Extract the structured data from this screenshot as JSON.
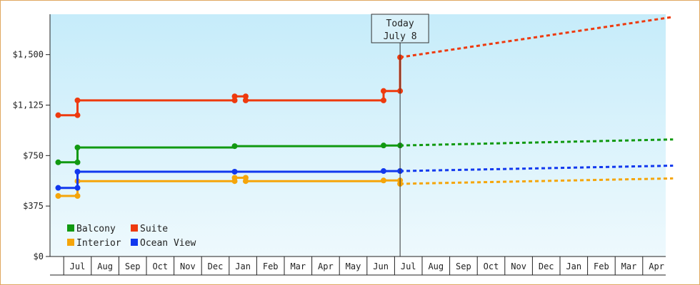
{
  "chart_data": {
    "type": "line",
    "title": "",
    "xlabel": "",
    "ylabel": "",
    "ylim": [
      0,
      1800
    ],
    "y_ticks": [
      {
        "value": 0,
        "label": "$0"
      },
      {
        "value": 375,
        "label": "$375"
      },
      {
        "value": 750,
        "label": "$750"
      },
      {
        "value": 1125,
        "label": "$1,125"
      },
      {
        "value": 1500,
        "label": "$1,500"
      }
    ],
    "x_range": [
      -0.7,
      21.6
    ],
    "x_ticks": [
      {
        "pos": 0,
        "label": "Jul"
      },
      {
        "pos": 1,
        "label": "Aug"
      },
      {
        "pos": 2,
        "label": "Sep"
      },
      {
        "pos": 3,
        "label": "Oct"
      },
      {
        "pos": 4,
        "label": "Nov"
      },
      {
        "pos": 5,
        "label": "Dec"
      },
      {
        "pos": 6,
        "label": "Jan"
      },
      {
        "pos": 7,
        "label": "Feb"
      },
      {
        "pos": 8,
        "label": "Mar"
      },
      {
        "pos": 9,
        "label": "Apr"
      },
      {
        "pos": 10,
        "label": "May"
      },
      {
        "pos": 11,
        "label": "Jun"
      },
      {
        "pos": 12,
        "label": "Jul"
      },
      {
        "pos": 13,
        "label": "Aug"
      },
      {
        "pos": 14,
        "label": "Sep"
      },
      {
        "pos": 15,
        "label": "Oct"
      },
      {
        "pos": 16,
        "label": "Nov"
      },
      {
        "pos": 17,
        "label": "Dec"
      },
      {
        "pos": 18,
        "label": "Jan"
      },
      {
        "pos": 19,
        "label": "Feb"
      },
      {
        "pos": 20,
        "label": "Mar"
      },
      {
        "pos": 21,
        "label": "Apr"
      }
    ],
    "today": {
      "pos": 11.7,
      "line1": "Today",
      "line2": "July 8"
    },
    "grid": false,
    "legend_position": "bottom-left",
    "series": [
      {
        "name": "Balcony",
        "color": "#119911",
        "history": [
          [
            -0.7,
            700
          ],
          [
            0.0,
            700
          ],
          [
            0.0,
            810
          ],
          [
            5.7,
            810
          ],
          [
            5.7,
            820
          ],
          [
            11.1,
            820
          ],
          [
            11.1,
            825
          ],
          [
            11.7,
            825
          ]
        ],
        "markers": [
          [
            -0.7,
            700
          ],
          [
            0.0,
            700
          ],
          [
            0.0,
            810
          ],
          [
            5.7,
            820
          ],
          [
            11.1,
            825
          ],
          [
            11.7,
            825
          ]
        ],
        "forecast": [
          [
            11.7,
            825
          ],
          [
            21.6,
            870
          ]
        ]
      },
      {
        "name": "Interior",
        "color": "#f5a50a",
        "history": [
          [
            -0.7,
            450
          ],
          [
            0.0,
            450
          ],
          [
            0.0,
            560
          ],
          [
            5.7,
            560
          ],
          [
            5.7,
            585
          ],
          [
            6.1,
            585
          ],
          [
            6.1,
            560
          ],
          [
            11.1,
            560
          ],
          [
            11.1,
            565
          ],
          [
            11.7,
            565
          ],
          [
            11.7,
            540
          ]
        ],
        "markers": [
          [
            -0.7,
            450
          ],
          [
            0.0,
            450
          ],
          [
            0.0,
            560
          ],
          [
            5.7,
            560
          ],
          [
            5.7,
            585
          ],
          [
            6.1,
            585
          ],
          [
            6.1,
            560
          ],
          [
            11.1,
            565
          ],
          [
            11.7,
            565
          ],
          [
            11.7,
            540
          ]
        ],
        "forecast": [
          [
            11.7,
            540
          ],
          [
            21.6,
            580
          ]
        ]
      },
      {
        "name": "Suite",
        "color": "#ee3a0e",
        "history": [
          [
            -0.7,
            1050
          ],
          [
            0.0,
            1050
          ],
          [
            0.0,
            1160
          ],
          [
            5.7,
            1160
          ],
          [
            5.7,
            1190
          ],
          [
            6.1,
            1190
          ],
          [
            6.1,
            1160
          ],
          [
            11.1,
            1160
          ],
          [
            11.1,
            1230
          ],
          [
            11.7,
            1230
          ],
          [
            11.7,
            1480
          ]
        ],
        "markers": [
          [
            -0.7,
            1050
          ],
          [
            0.0,
            1050
          ],
          [
            0.0,
            1160
          ],
          [
            5.7,
            1160
          ],
          [
            5.7,
            1190
          ],
          [
            6.1,
            1190
          ],
          [
            6.1,
            1160
          ],
          [
            11.1,
            1160
          ],
          [
            11.1,
            1230
          ],
          [
            11.7,
            1230
          ],
          [
            11.7,
            1480
          ]
        ],
        "forecast": [
          [
            11.7,
            1480
          ],
          [
            21.6,
            1780
          ]
        ]
      },
      {
        "name": "Ocean View",
        "color": "#1138ee",
        "history": [
          [
            -0.7,
            510
          ],
          [
            0.0,
            510
          ],
          [
            0.0,
            630
          ],
          [
            5.7,
            630
          ],
          [
            11.1,
            630
          ],
          [
            11.1,
            635
          ],
          [
            11.7,
            635
          ]
        ],
        "markers": [
          [
            -0.7,
            510
          ],
          [
            0.0,
            510
          ],
          [
            0.0,
            630
          ],
          [
            5.7,
            630
          ],
          [
            11.1,
            635
          ],
          [
            11.7,
            635
          ]
        ],
        "forecast": [
          [
            11.7,
            635
          ],
          [
            21.6,
            675
          ]
        ]
      }
    ]
  }
}
